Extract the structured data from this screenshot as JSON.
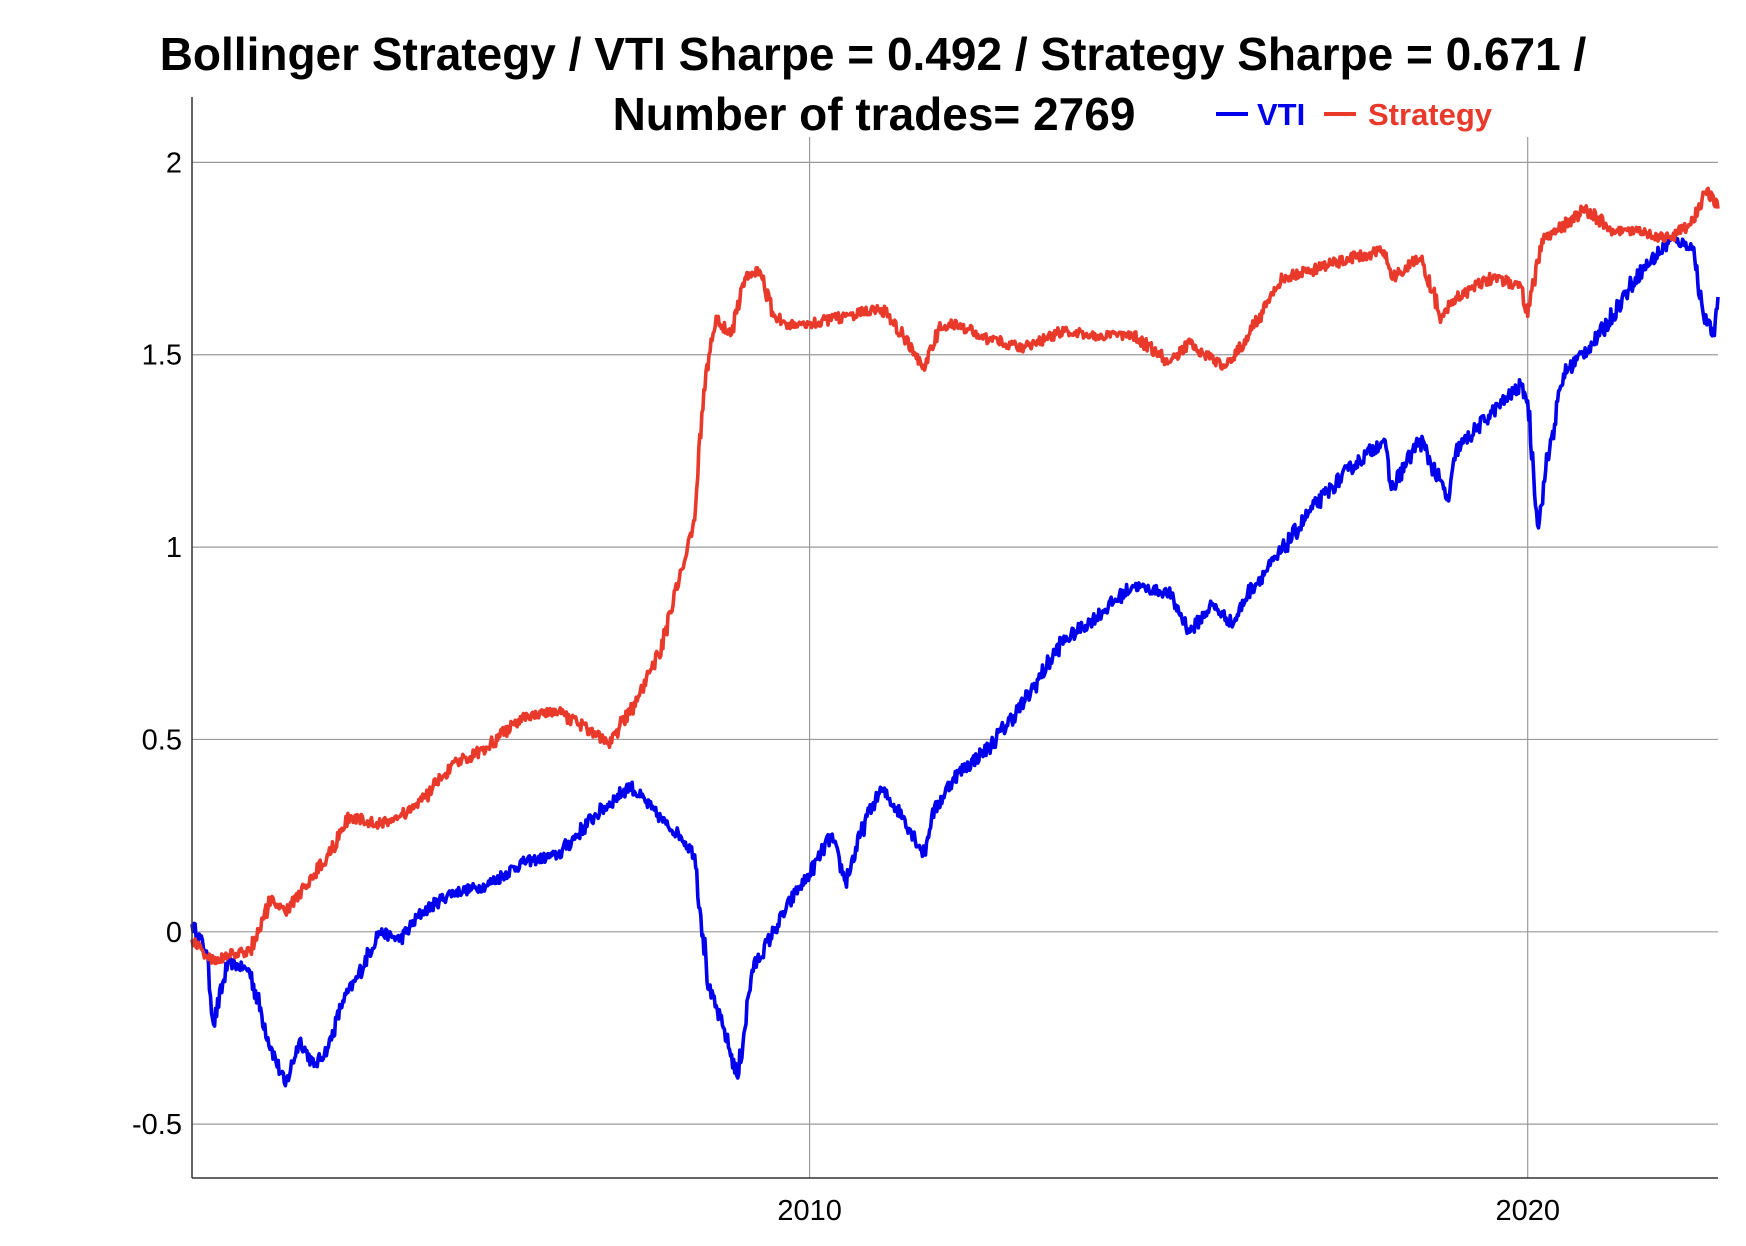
{
  "chart_data": {
    "type": "line",
    "title_line1": "Bollinger Strategy / VTI Sharpe = 0.492 / Strategy Sharpe = 0.671 /",
    "title_line2": "Number of trades= 2769",
    "xlabel": "",
    "ylabel": "",
    "xlim": [
      2001.4,
      2022.65
    ],
    "ylim": [
      -0.64,
      2.17
    ],
    "x_ticks": [
      2010,
      2020
    ],
    "x_tick_labels": [
      "2010",
      "2020"
    ],
    "y_ticks": [
      -0.5,
      0,
      0.5,
      1,
      1.5,
      2
    ],
    "y_tick_labels": [
      "-0.5",
      "0",
      "0.5",
      "1",
      "1.5",
      "2"
    ],
    "grid": true,
    "legend": {
      "placement": "top-right, beside title"
    },
    "series": [
      {
        "name": "VTI",
        "color": "#0000ee",
        "x": [
          2001.4,
          2001.6,
          2001.7,
          2001.9,
          2002.2,
          2002.5,
          2002.7,
          2002.9,
          2003.1,
          2003.3,
          2003.5,
          2003.7,
          2004.0,
          2004.3,
          2004.6,
          2005.0,
          2005.5,
          2006.0,
          2006.5,
          2007.0,
          2007.5,
          2007.8,
          2008.0,
          2008.2,
          2008.4,
          2008.6,
          2008.8,
          2009.0,
          2009.2,
          2009.5,
          2009.8,
          2010.0,
          2010.3,
          2010.5,
          2010.8,
          2011.0,
          2011.3,
          2011.6,
          2011.7,
          2012.0,
          2012.5,
          2013.0,
          2013.5,
          2014.0,
          2014.5,
          2015.0,
          2015.3,
          2015.6,
          2015.9,
          2016.1,
          2016.5,
          2017.0,
          2017.5,
          2018.0,
          2018.1,
          2018.5,
          2018.9,
          2019.0,
          2019.5,
          2019.9,
          2020.0,
          2020.15,
          2020.25,
          2020.5,
          2021.0,
          2021.5,
          2022.0,
          2022.3,
          2022.45,
          2022.6,
          2022.65
        ],
        "y": [
          0.02,
          -0.05,
          -0.24,
          -0.08,
          -0.1,
          -0.3,
          -0.4,
          -0.28,
          -0.35,
          -0.3,
          -0.18,
          -0.12,
          0.0,
          -0.02,
          0.05,
          0.1,
          0.12,
          0.18,
          0.2,
          0.3,
          0.38,
          0.32,
          0.28,
          0.25,
          0.2,
          -0.15,
          -0.25,
          -0.38,
          -0.1,
          0.0,
          0.1,
          0.15,
          0.25,
          0.13,
          0.3,
          0.37,
          0.3,
          0.2,
          0.3,
          0.4,
          0.48,
          0.6,
          0.75,
          0.82,
          0.9,
          0.88,
          0.78,
          0.85,
          0.8,
          0.88,
          0.97,
          1.1,
          1.2,
          1.28,
          1.15,
          1.28,
          1.12,
          1.25,
          1.35,
          1.42,
          1.38,
          1.05,
          1.2,
          1.45,
          1.55,
          1.7,
          1.8,
          1.78,
          1.6,
          1.55,
          1.65
        ]
      },
      {
        "name": "Strategy",
        "color": "#e8392b",
        "x": [
          2001.4,
          2001.7,
          2001.9,
          2002.2,
          2002.5,
          2002.7,
          2002.9,
          2003.1,
          2003.3,
          2003.6,
          2004.0,
          2004.3,
          2004.6,
          2005.0,
          2005.5,
          2006.0,
          2006.5,
          2007.0,
          2007.2,
          2007.6,
          2007.9,
          2008.1,
          2008.3,
          2008.4,
          2008.5,
          2008.6,
          2008.7,
          2008.9,
          2009.1,
          2009.3,
          2009.5,
          2009.7,
          2010.0,
          2010.5,
          2011.0,
          2011.3,
          2011.6,
          2011.8,
          2012.0,
          2012.5,
          2013.0,
          2013.5,
          2014.0,
          2014.5,
          2015.0,
          2015.3,
          2015.5,
          2015.8,
          2016.0,
          2016.2,
          2016.6,
          2017.0,
          2017.5,
          2018.0,
          2018.1,
          2018.5,
          2018.8,
          2019.0,
          2019.5,
          2019.9,
          2020.0,
          2020.2,
          2020.4,
          2020.8,
          2021.2,
          2021.6,
          2022.0,
          2022.3,
          2022.5,
          2022.65
        ],
        "y": [
          -0.02,
          -0.08,
          -0.06,
          -0.05,
          0.08,
          0.05,
          0.1,
          0.15,
          0.2,
          0.3,
          0.28,
          0.3,
          0.34,
          0.43,
          0.48,
          0.56,
          0.57,
          0.52,
          0.49,
          0.6,
          0.72,
          0.85,
          1.0,
          1.07,
          1.35,
          1.5,
          1.6,
          1.55,
          1.7,
          1.72,
          1.6,
          1.58,
          1.58,
          1.6,
          1.62,
          1.55,
          1.46,
          1.57,
          1.58,
          1.54,
          1.52,
          1.56,
          1.55,
          1.55,
          1.48,
          1.53,
          1.5,
          1.47,
          1.52,
          1.58,
          1.7,
          1.72,
          1.75,
          1.77,
          1.7,
          1.75,
          1.6,
          1.65,
          1.7,
          1.68,
          1.6,
          1.8,
          1.82,
          1.88,
          1.82,
          1.82,
          1.8,
          1.85,
          1.93,
          1.88
        ]
      }
    ]
  }
}
